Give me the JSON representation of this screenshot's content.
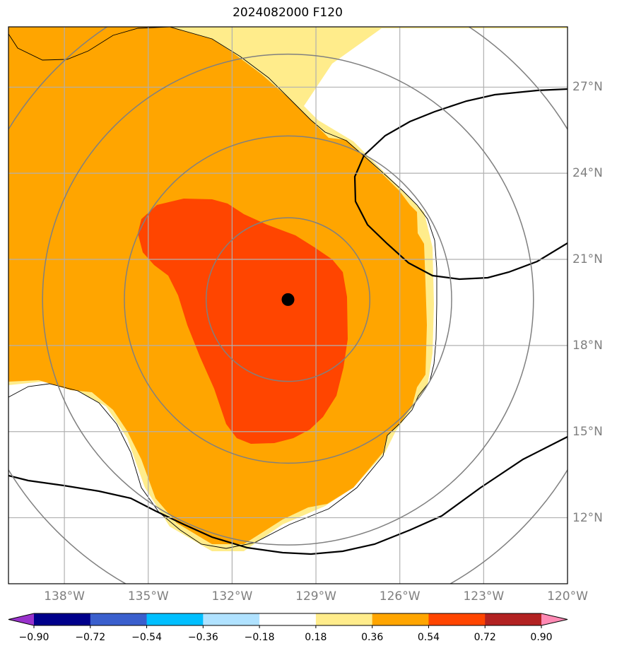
{
  "title": "2024082000 F120",
  "map": {
    "lon_range": [
      -140,
      -120
    ],
    "lat_range": [
      9.7,
      29.1
    ],
    "lon_ticks": [
      {
        "value": -138,
        "label": "138°W"
      },
      {
        "value": -135,
        "label": "135°W"
      },
      {
        "value": -132,
        "label": "132°W"
      },
      {
        "value": -129,
        "label": "129°W"
      },
      {
        "value": -126,
        "label": "126°W"
      },
      {
        "value": -123,
        "label": "123°W"
      },
      {
        "value": -120,
        "label": "120°W"
      }
    ],
    "lat_ticks": [
      {
        "value": 27,
        "label": "27°N"
      },
      {
        "value": 24,
        "label": "24°N"
      },
      {
        "value": 21,
        "label": "21°N"
      },
      {
        "value": 18,
        "label": "18°N"
      },
      {
        "value": 15,
        "label": "15°N"
      },
      {
        "value": 12,
        "label": "12°N"
      }
    ],
    "center": {
      "lon": -130.0,
      "lat": 19.6
    },
    "range_rings_deg": [
      2.85,
      5.7,
      8.55,
      11.4
    ],
    "colors": {
      "ring": "#808080",
      "grid": "#b0b0b0",
      "center_marker": "#000000",
      "contour": "#000000"
    }
  },
  "colorbar": {
    "boundaries": [
      -0.9,
      -0.72,
      -0.54,
      -0.36,
      -0.18,
      0.18,
      0.36,
      0.54,
      0.72,
      0.9
    ],
    "labels": [
      "−0.90",
      "−0.72",
      "−0.54",
      "−0.36",
      "−0.18",
      "0.18",
      "0.36",
      "0.54",
      "0.72",
      "0.90"
    ],
    "colors": [
      "#9932cc",
      "#00008b",
      "#3a5fcd",
      "#00bfff",
      "#b0e2ff",
      "#ffffff",
      "#ffec8b",
      "#ffa500",
      "#ff4500",
      "#b22222",
      "#ff8ab4"
    ],
    "extend": "both"
  }
}
